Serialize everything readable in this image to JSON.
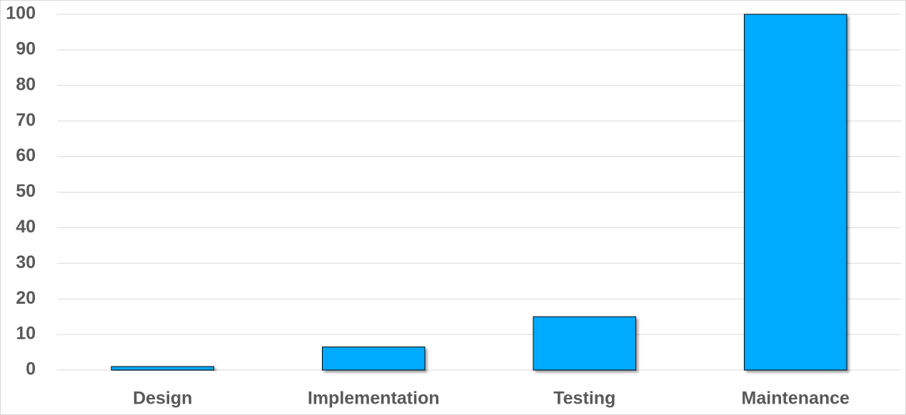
{
  "chart_data": {
    "type": "bar",
    "categories": [
      "Design",
      "Implementation",
      "Testing",
      "Maintenance"
    ],
    "values": [
      1,
      6.5,
      15,
      100
    ],
    "color": "#00aaff",
    "ylim": [
      0,
      100
    ],
    "yticks": [
      0,
      10,
      20,
      30,
      40,
      50,
      60,
      70,
      80,
      90,
      100
    ],
    "grid": true
  }
}
